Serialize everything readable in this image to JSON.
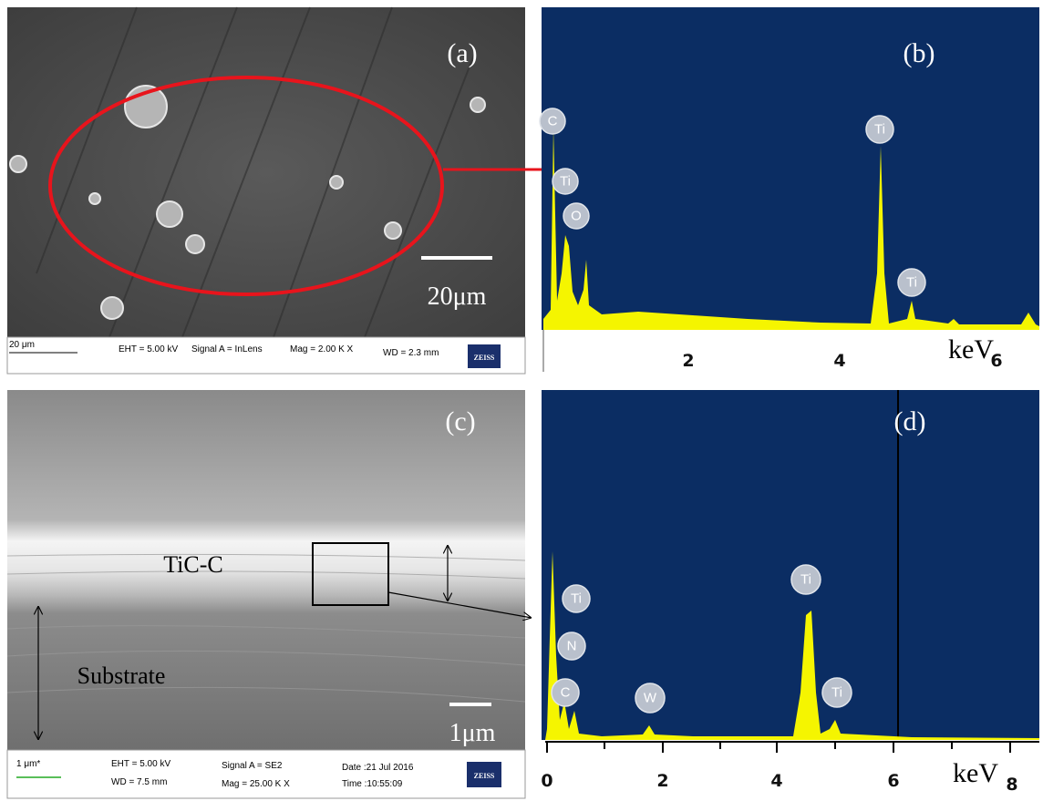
{
  "panels": [
    {
      "label": "(a)",
      "scale_bar": "20μm",
      "info_bar": {
        "scale": "20 μm",
        "eht": "EHT = 5.00 kV",
        "signal": "Signal A = InLens",
        "mag": "Mag =   2.00 K X",
        "wd": "WD = 2.3 mm",
        "brand": "ZEISS"
      }
    },
    {
      "label": "(b)",
      "peaks": [
        "C",
        "Ti",
        "O",
        "Ti",
        "Ti"
      ],
      "x_ticks": [
        2,
        4,
        6
      ],
      "x_unit": "keV"
    },
    {
      "label": "(c)",
      "layer": "TiC-C",
      "substrate": "Substrate",
      "scale_bar": "1μm",
      "info_bar": {
        "scale": "1 μm*",
        "eht": "EHT = 5.00 kV",
        "wd": "WD = 7.5 mm",
        "signal": "Signal A = SE2",
        "mag": "Mag = 25.00 K X",
        "date": "Date :21 Jul 2016",
        "time": "Time :10:55:09",
        "brand": "ZEISS"
      }
    },
    {
      "label": "(d)",
      "peaks": [
        "Ti",
        "N",
        "C",
        "W",
        "Ti",
        "Ti"
      ],
      "x_ticks": [
        0,
        2,
        4,
        6,
        8
      ],
      "x_unit": "keV"
    }
  ]
}
